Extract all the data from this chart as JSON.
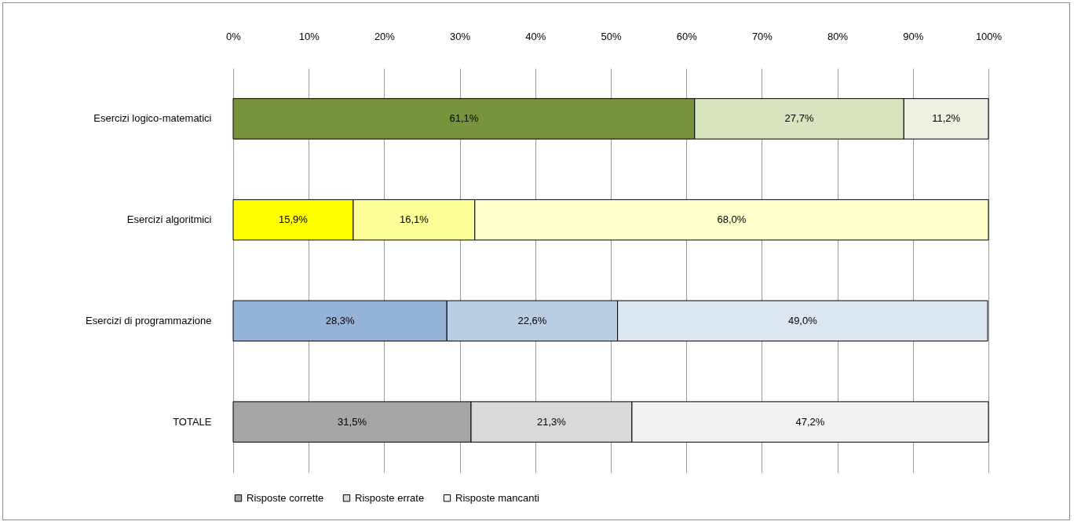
{
  "chart_data": {
    "type": "bar",
    "orientation": "horizontal",
    "stacked": true,
    "categories": [
      "Esercizi logico-matematici",
      "Esercizi algoritmici",
      "Esercizi di programmazione",
      "TOTALE"
    ],
    "xlim": [
      0,
      100
    ],
    "xticks": [
      {
        "value": 0,
        "label": "0%"
      },
      {
        "value": 10,
        "label": "10%"
      },
      {
        "value": 20,
        "label": "20%"
      },
      {
        "value": 30,
        "label": "30%"
      },
      {
        "value": 40,
        "label": "40%"
      },
      {
        "value": 50,
        "label": "50%"
      },
      {
        "value": 60,
        "label": "60%"
      },
      {
        "value": 70,
        "label": "70%"
      },
      {
        "value": 80,
        "label": "80%"
      },
      {
        "value": 90,
        "label": "90%"
      },
      {
        "value": 100,
        "label": "100%"
      }
    ],
    "grid": "x",
    "legend": "bottom",
    "series": [
      {
        "name": "Risposte corrette",
        "color": "#a6a6a6",
        "colors": [
          "#77933c",
          "#ffff00",
          "#95b3d7",
          "#a6a6a6"
        ],
        "values": [
          61.1,
          15.9,
          28.3,
          31.5
        ],
        "value_labels": [
          "61,1%",
          "15,9%",
          "28,3%",
          "31,5%"
        ]
      },
      {
        "name": "Risposte errate",
        "color": "#d9d9d9",
        "colors": [
          "#d7e4bd",
          "#ffff99",
          "#b9cde5",
          "#d9d9d9"
        ],
        "values": [
          27.7,
          16.1,
          22.6,
          21.3
        ],
        "value_labels": [
          "27,7%",
          "16,1%",
          "22,6%",
          "21,3%"
        ]
      },
      {
        "name": "Risposte mancanti",
        "color": "#f2f2f2",
        "colors": [
          "#ebf1de",
          "#ffffcc",
          "#dce6f2",
          "#f2f2f2"
        ],
        "values": [
          11.2,
          68.0,
          49.0,
          47.2
        ],
        "value_labels": [
          "11,2%",
          "68,0%",
          "49,0%",
          "47,2%"
        ]
      }
    ]
  }
}
